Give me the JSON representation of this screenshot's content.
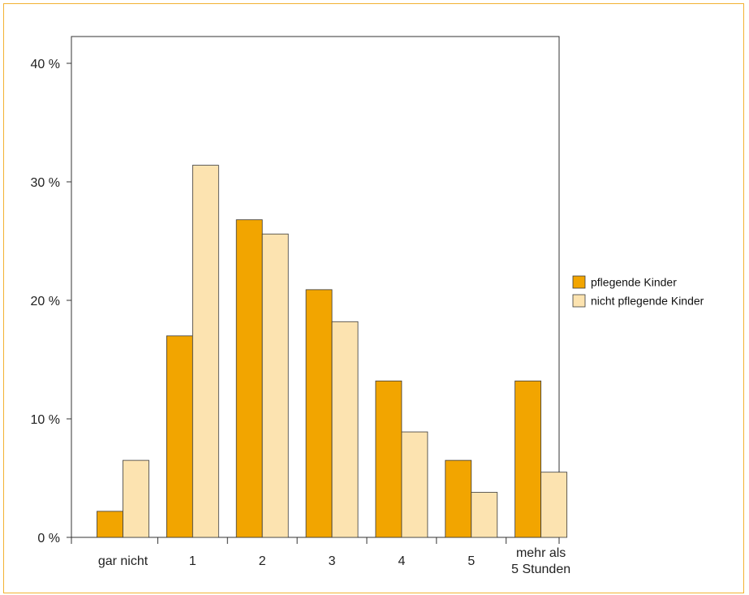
{
  "chart_data": {
    "type": "bar",
    "categories": [
      "gar nicht",
      "1",
      "2",
      "3",
      "4",
      "5",
      "mehr als\n5 Stunden"
    ],
    "series": [
      {
        "name": "pflegende Kinder",
        "values": [
          2.2,
          17.0,
          26.8,
          20.9,
          13.2,
          6.5,
          13.2
        ],
        "color": "#f2a500"
      },
      {
        "name": "nicht pflegende Kinder",
        "values": [
          6.5,
          31.4,
          25.6,
          18.2,
          8.9,
          3.8,
          5.5
        ],
        "color": "#fce3b0"
      }
    ],
    "ylim": [
      0,
      40
    ],
    "yticks": [
      0,
      10,
      20,
      30,
      40
    ],
    "ytick_labels": [
      "0 %",
      "10 %",
      "20 %",
      "30 %",
      "40 %"
    ],
    "grid": false,
    "legend_position": "right",
    "title": "",
    "xlabel": "",
    "ylabel": ""
  },
  "colors": {
    "frame_border": "#f2b233",
    "bar_stroke": "#3a3a3a",
    "axis": "#333333"
  }
}
